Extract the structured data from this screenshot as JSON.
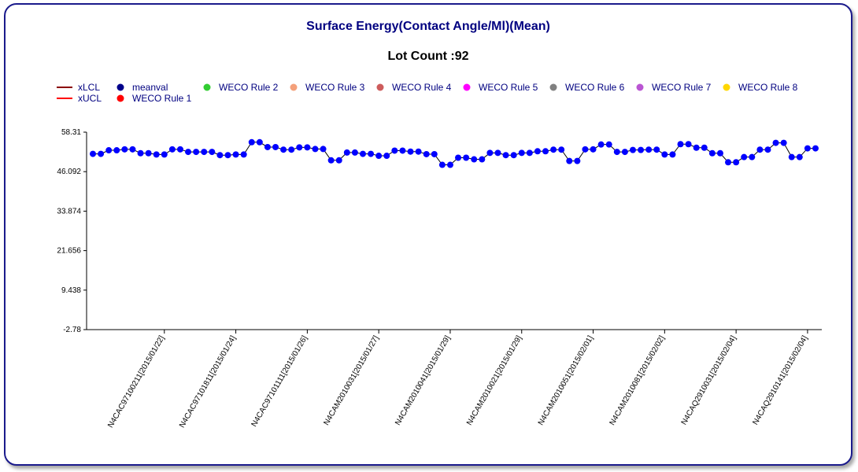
{
  "chart_data": {
    "type": "line",
    "title": "Surface Energy(Contact Angle/Ml)(Mean)",
    "subtitle": "Lot Count :92",
    "ylim": [
      -2.78,
      58.31
    ],
    "yticks": [
      "58.31",
      "46.092",
      "33.874",
      "21.656",
      "9.438",
      "-2.78"
    ],
    "xtick_labels": [
      "N4CAC97100211[2015/01/22]",
      "N4CAC97101811[2015/01/24]",
      "N4CAC97101111[2015/01/26]",
      "N4CAM2010031[2015/01/27]",
      "N4CAM2010041[2015/01/29]",
      "N4CAM2010021[2015/01/29]",
      "N4CAM2010051[2015/02/01]",
      "N4CAM2010081[2015/02/02]",
      "N4CAQ2910031[2015/02/04]",
      "N4CAQ2910141[2015/02/04]"
    ],
    "xtick_indices": [
      9,
      18,
      27,
      36,
      45,
      54,
      63,
      72,
      81,
      90
    ],
    "series": [
      {
        "name": "meanval",
        "color": "#0000ff",
        "values": [
          51.6,
          51.6,
          52.7,
          52.7,
          53.0,
          53.0,
          51.8,
          51.8,
          51.4,
          51.4,
          53.0,
          53.0,
          52.2,
          52.2,
          52.2,
          52.2,
          51.2,
          51.2,
          51.4,
          51.4,
          55.2,
          55.2,
          53.7,
          53.7,
          52.9,
          52.9,
          53.6,
          53.6,
          53.1,
          53.1,
          49.6,
          49.6,
          52.0,
          52.0,
          51.6,
          51.6,
          51.0,
          51.0,
          52.6,
          52.6,
          52.3,
          52.3,
          51.5,
          51.5,
          48.2,
          48.2,
          50.4,
          50.4,
          49.9,
          49.9,
          51.9,
          51.9,
          51.2,
          51.2,
          51.9,
          51.9,
          52.4,
          52.4,
          52.9,
          52.9,
          49.4,
          49.4,
          53.0,
          53.0,
          54.5,
          54.5,
          52.2,
          52.2,
          52.8,
          52.8,
          52.9,
          52.9,
          51.4,
          51.4,
          54.6,
          54.6,
          53.5,
          53.5,
          51.8,
          51.8,
          49.0,
          49.0,
          50.6,
          50.6,
          52.9,
          52.9,
          55.0,
          55.0,
          50.6,
          50.6,
          53.3,
          53.3
        ]
      }
    ],
    "legend": [
      {
        "label": "xLCL",
        "marker": "line",
        "color": "#8b0000"
      },
      {
        "label": "xUCL",
        "marker": "line",
        "color": "#ff0000"
      },
      {
        "label": "meanval",
        "marker": "dot",
        "color": "#00008b"
      },
      {
        "label": "WECO Rule 1",
        "marker": "dot",
        "color": "#ff0000"
      },
      {
        "label": "WECO Rule 2",
        "marker": "dot",
        "color": "#32cd32"
      },
      {
        "label": "WECO Rule 3",
        "marker": "dot",
        "color": "#f4a07a"
      },
      {
        "label": "WECO Rule 4",
        "marker": "dot",
        "color": "#cd5c5c"
      },
      {
        "label": "WECO Rule 5",
        "marker": "dot",
        "color": "#ff00ff"
      },
      {
        "label": "WECO Rule 6",
        "marker": "dot",
        "color": "#808080"
      },
      {
        "label": "WECO Rule 7",
        "marker": "dot",
        "color": "#ba55d3"
      },
      {
        "label": "WECO Rule 8",
        "marker": "dot",
        "color": "#ffd700"
      }
    ],
    "legend_position": "top-left",
    "grid": false
  }
}
